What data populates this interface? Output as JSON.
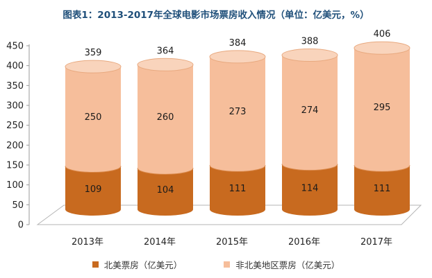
{
  "chart_data": {
    "type": "bar",
    "stacked": true,
    "style": "3d-cylinder",
    "title": "图表1：2013-2017年全球电影市场票房收入情况（单位：亿美元，%）",
    "categories": [
      "2013年",
      "2014年",
      "2015年",
      "2016年",
      "2017年"
    ],
    "series": [
      {
        "name": "北美票房（亿美元）",
        "values": [
          109,
          104,
          111,
          114,
          111
        ],
        "color": "#c86a1f"
      },
      {
        "name": "非北美地区票房（亿美元）",
        "values": [
          250,
          260,
          273,
          274,
          295
        ],
        "color": "#f6be9b"
      }
    ],
    "totals": [
      359,
      364,
      384,
      388,
      406
    ],
    "ylim": [
      0,
      450
    ],
    "yticks": [
      0,
      50,
      100,
      150,
      200,
      250,
      300,
      350,
      400,
      450
    ],
    "grid": false,
    "legend_position": "bottom"
  }
}
